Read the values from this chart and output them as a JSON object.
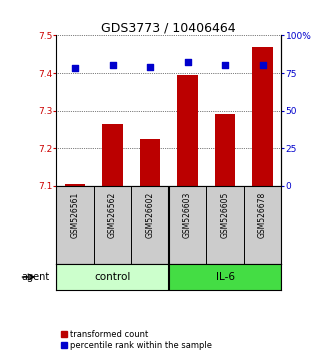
{
  "title": "GDS3773 / 10406464",
  "samples": [
    "GSM526561",
    "GSM526562",
    "GSM526602",
    "GSM526603",
    "GSM526605",
    "GSM526678"
  ],
  "bar_values": [
    7.105,
    7.265,
    7.225,
    7.395,
    7.29,
    7.47
  ],
  "percentile_values": [
    78,
    80,
    79,
    82,
    80,
    80
  ],
  "ylim_left": [
    7.1,
    7.5
  ],
  "ylim_right": [
    0,
    100
  ],
  "yticks_left": [
    7.1,
    7.2,
    7.3,
    7.4,
    7.5
  ],
  "yticks_right": [
    0,
    25,
    50,
    75,
    100
  ],
  "ytick_labels_right": [
    "0",
    "25",
    "50",
    "75",
    "100%"
  ],
  "bar_color": "#bb0000",
  "dot_color": "#0000cc",
  "bar_width": 0.55,
  "groups": [
    {
      "label": "control",
      "indices": [
        0,
        1,
        2
      ],
      "color": "#ccffcc"
    },
    {
      "label": "IL-6",
      "indices": [
        3,
        4,
        5
      ],
      "color": "#44dd44"
    }
  ],
  "agent_label": "agent",
  "legend_bar_label": "transformed count",
  "legend_dot_label": "percentile rank within the sample",
  "plot_bg_color": "#ffffff",
  "sample_bg_color": "#cccccc",
  "tick_label_color_left": "#cc0000",
  "tick_label_color_right": "#0000cc",
  "title_fontsize": 9,
  "tick_fontsize": 6.5,
  "sample_fontsize": 5.5,
  "group_fontsize": 7.5,
  "legend_fontsize": 6
}
